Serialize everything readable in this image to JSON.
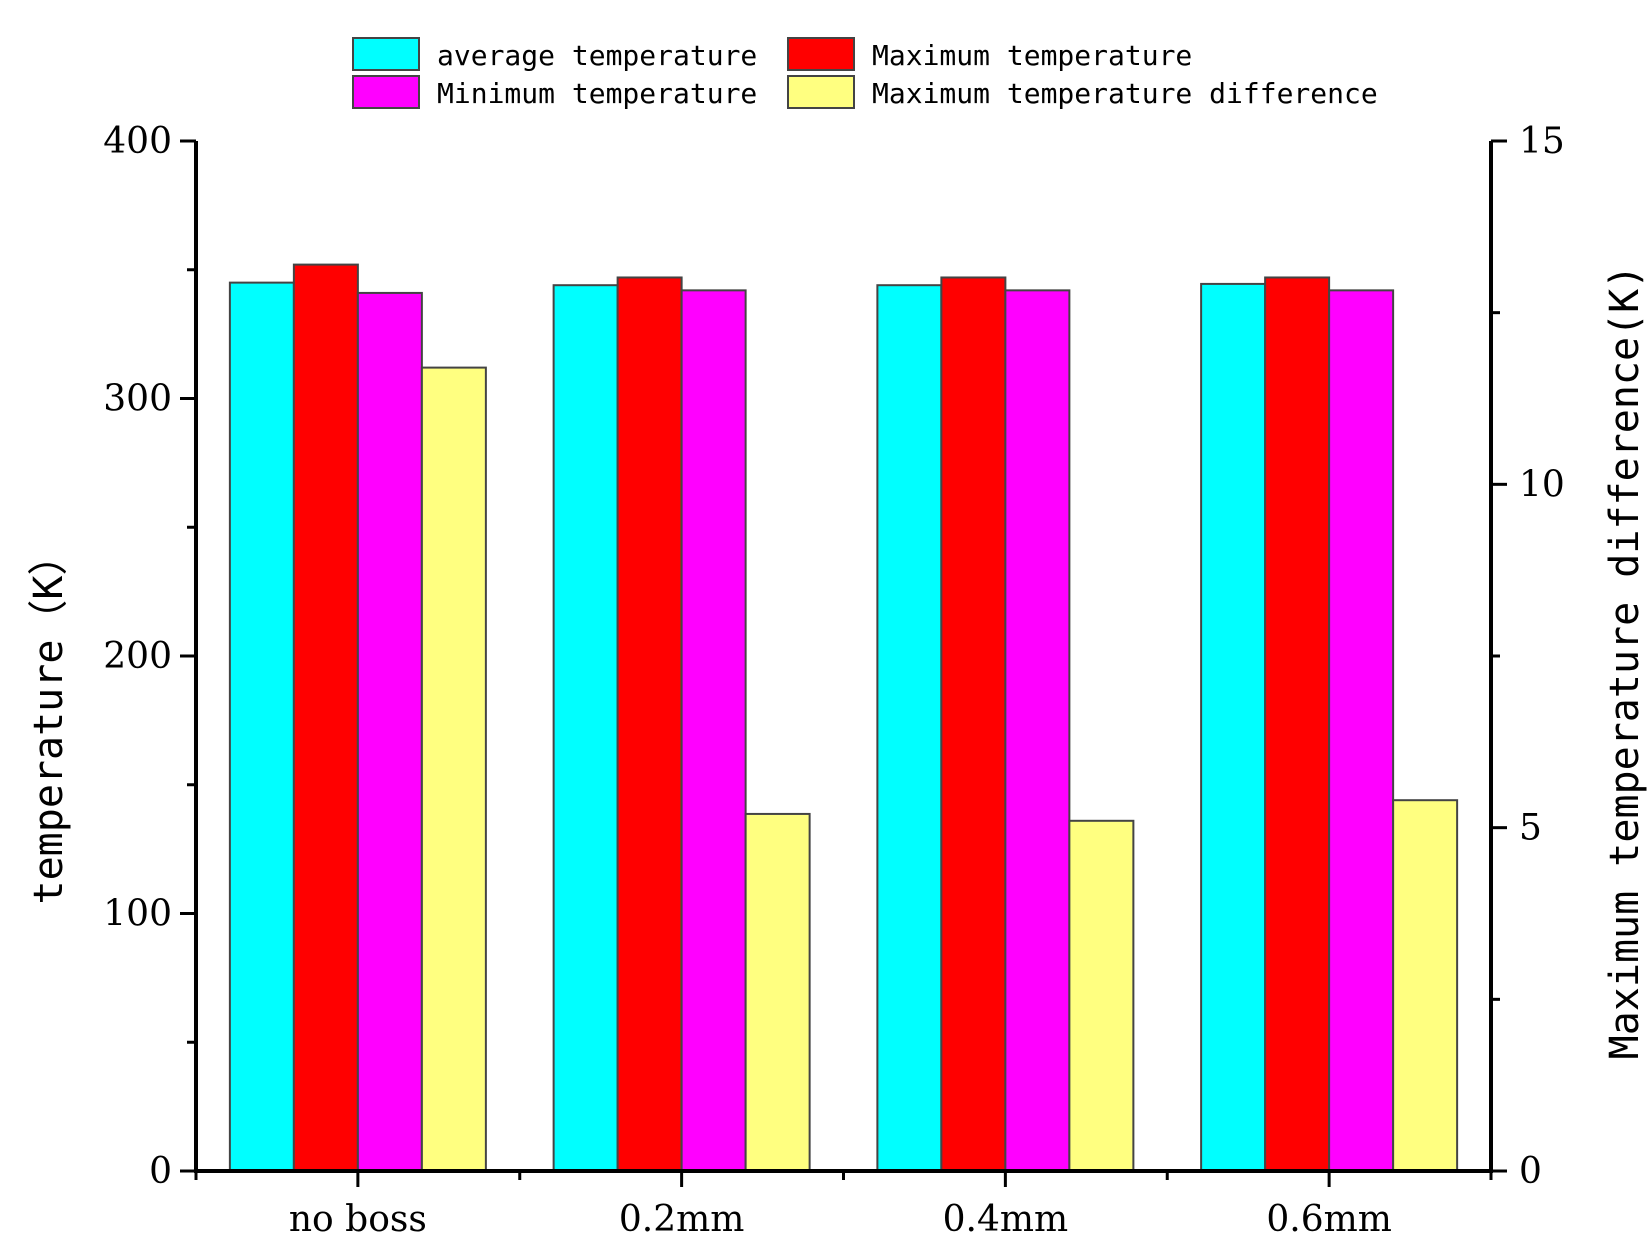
{
  "chart_data": {
    "type": "bar",
    "title": "",
    "categories": [
      "no boss",
      "0.2mm",
      "0.4mm",
      "0.6mm"
    ],
    "series": [
      {
        "name": "average temperature",
        "axis": "left",
        "color": "#00FFFF",
        "values": [
          345,
          344,
          344,
          344.5
        ]
      },
      {
        "name": "Maximum temperature",
        "axis": "left",
        "color": "#FF0000",
        "values": [
          352,
          347,
          347,
          347
        ]
      },
      {
        "name": "Minimum temperature",
        "axis": "left",
        "color": "#FF00FF",
        "values": [
          341,
          342,
          342,
          342
        ]
      },
      {
        "name": "Maximum temperature difference",
        "axis": "right",
        "color": "#FFFF80",
        "values": [
          11.7,
          5.2,
          5.1,
          5.4
        ]
      }
    ],
    "ylabel": "temperature（K）",
    "ylim": [
      0,
      400
    ],
    "yticks": [
      "0",
      "100",
      "200",
      "300",
      "400"
    ],
    "y2label": "Maximum temperature difference(K)",
    "y2lim": [
      0,
      15
    ],
    "y2ticks": [
      "0",
      "5",
      "10",
      "15"
    ],
    "xlabel": "",
    "legend_position": "top-center",
    "grid": false
  }
}
